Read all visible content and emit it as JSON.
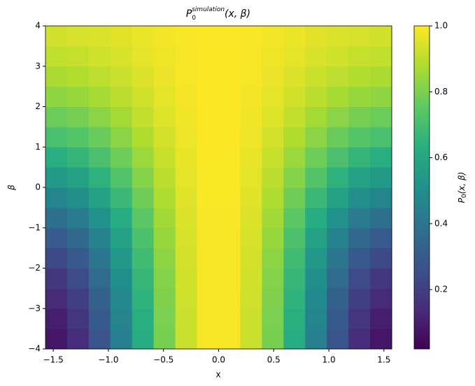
{
  "chart_data": {
    "type": "heatmap",
    "title": {
      "base": "P",
      "sub": "0",
      "sup": "simulation",
      "rest": "(x, β)"
    },
    "x_label": "x",
    "y_label": "β",
    "colorbar_label": {
      "base": "P",
      "sub": "0",
      "rest": "(x, β)"
    },
    "xlim": [
      -1.5708,
      1.5708
    ],
    "ylim": [
      -4,
      4
    ],
    "xticks": [
      {
        "value": -1.5,
        "label": "−1.5"
      },
      {
        "value": -1.0,
        "label": "−1.0"
      },
      {
        "value": -0.5,
        "label": "−0.5"
      },
      {
        "value": 0,
        "label": "0.0"
      },
      {
        "value": 0.5,
        "label": "0.5"
      },
      {
        "value": 1.0,
        "label": "1.0"
      },
      {
        "value": 1.5,
        "label": "1.5"
      }
    ],
    "yticks": [
      {
        "value": -4,
        "label": "−4"
      },
      {
        "value": -3,
        "label": "−3"
      },
      {
        "value": -2,
        "label": "−2"
      },
      {
        "value": -1,
        "label": "−1"
      },
      0,
      1,
      2,
      3,
      4
    ],
    "clim": [
      0.02,
      1.0
    ],
    "cticks": [
      0.2,
      0.4,
      0.6,
      0.8,
      {
        "value": 1,
        "label": "1.0"
      }
    ],
    "colormap": "viridis",
    "z": [
      [
        0.077,
        0.147,
        0.275,
        0.443,
        0.625,
        0.793,
        0.922,
        0.991,
        0.991,
        0.922,
        0.793,
        0.625,
        0.443,
        0.275,
        0.147,
        0.077
      ],
      [
        0.102,
        0.17,
        0.294,
        0.458,
        0.635,
        0.799,
        0.924,
        0.991,
        0.991,
        0.924,
        0.799,
        0.635,
        0.458,
        0.294,
        0.17,
        0.102
      ],
      [
        0.136,
        0.201,
        0.321,
        0.478,
        0.649,
        0.806,
        0.927,
        0.991,
        0.991,
        0.927,
        0.806,
        0.649,
        0.478,
        0.321,
        0.201,
        0.136
      ],
      [
        0.18,
        0.242,
        0.356,
        0.505,
        0.667,
        0.816,
        0.93,
        0.992,
        0.992,
        0.93,
        0.816,
        0.667,
        0.505,
        0.356,
        0.242,
        0.18
      ],
      [
        0.235,
        0.293,
        0.399,
        0.538,
        0.689,
        0.828,
        0.935,
        0.992,
        0.992,
        0.935,
        0.828,
        0.689,
        0.538,
        0.399,
        0.293,
        0.235
      ],
      [
        0.301,
        0.354,
        0.451,
        0.578,
        0.716,
        0.843,
        0.941,
        0.993,
        0.993,
        0.941,
        0.843,
        0.716,
        0.578,
        0.451,
        0.354,
        0.301
      ],
      [
        0.378,
        0.425,
        0.511,
        0.624,
        0.748,
        0.861,
        0.947,
        0.994,
        0.994,
        0.947,
        0.861,
        0.748,
        0.624,
        0.511,
        0.425,
        0.378
      ],
      [
        0.461,
        0.502,
        0.577,
        0.675,
        0.781,
        0.879,
        0.954,
        0.995,
        0.995,
        0.954,
        0.879,
        0.781,
        0.675,
        0.577,
        0.502,
        0.461
      ],
      [
        0.549,
        0.583,
        0.645,
        0.727,
        0.817,
        0.899,
        0.962,
        0.995,
        0.995,
        0.962,
        0.899,
        0.817,
        0.727,
        0.645,
        0.583,
        0.549
      ],
      [
        0.632,
        0.66,
        0.711,
        0.778,
        0.85,
        0.917,
        0.969,
        0.996,
        0.996,
        0.969,
        0.917,
        0.85,
        0.778,
        0.711,
        0.66,
        0.632
      ],
      [
        0.709,
        0.731,
        0.771,
        0.824,
        0.882,
        0.935,
        0.975,
        0.997,
        0.997,
        0.975,
        0.935,
        0.882,
        0.824,
        0.771,
        0.731,
        0.709
      ],
      [
        0.775,
        0.792,
        0.823,
        0.864,
        0.909,
        0.95,
        0.981,
        0.998,
        0.998,
        0.981,
        0.95,
        0.909,
        0.864,
        0.823,
        0.792,
        0.775
      ],
      [
        0.83,
        0.843,
        0.866,
        0.897,
        0.931,
        0.962,
        0.986,
        0.998,
        0.998,
        0.986,
        0.962,
        0.931,
        0.897,
        0.866,
        0.843,
        0.83
      ],
      [
        0.874,
        0.884,
        0.901,
        0.924,
        0.949,
        0.972,
        0.989,
        0.999,
        0.999,
        0.989,
        0.972,
        0.949,
        0.924,
        0.901,
        0.884,
        0.874
      ],
      [
        0.908,
        0.915,
        0.928,
        0.944,
        0.963,
        0.979,
        0.992,
        0.999,
        0.999,
        0.992,
        0.979,
        0.963,
        0.944,
        0.928,
        0.915,
        0.908
      ],
      [
        0.933,
        0.938,
        0.947,
        0.959,
        0.973,
        0.985,
        0.994,
        0.999,
        0.999,
        0.994,
        0.985,
        0.973,
        0.959,
        0.947,
        0.938,
        0.933
      ]
    ]
  }
}
